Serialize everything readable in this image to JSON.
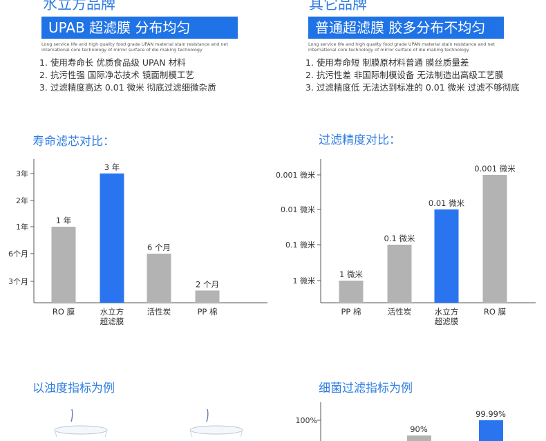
{
  "left": {
    "brand": "水立方品牌",
    "banner": "UPAB 超滤膜  分布均匀",
    "note": "Long service life and high quality food grade UPAN material stain resistance and net international core technology of mirror surface of die making technology",
    "points": [
      "1. 使用寿命长 优质食品级 UPAN 材料",
      "2. 抗污性强  国际净芯技术 镜面制模工艺",
      "3. 过滤精度高达 0.01 微米 彻底过滤细微杂质"
    ]
  },
  "right": {
    "brand": "其它品牌",
    "banner": "普通超滤膜 胶多分布不均匀",
    "note": "Long service life and high quality food grade UPAN material stain resistance and net international core technology of mirror surface of die making technology",
    "points": [
      "1. 使用寿命短 制膜原材料普通 膜丝质量差",
      "2. 抗污性差 非国际制模设备 无法制造出高级工艺膜",
      "3. 过滤精度低 无法达到标准的 0.01 微米 过滤不够彻底"
    ]
  },
  "sections": {
    "lifespan_title": "寿命滤芯对比：",
    "precision_title": "过滤精度对比：",
    "turbidity_title": "以浊度指标为例",
    "bacteria_title": "细菌过滤指标为例"
  },
  "colors": {
    "accent": "#2f7de1",
    "highlight_bar": "#2a74f0",
    "gray_bar": "#b3b3b3"
  },
  "chart_data": [
    {
      "type": "bar",
      "title": "寿命滤芯对比：",
      "y_ticks": [
        "3个月",
        "6个月",
        "1年",
        "2年",
        "3年"
      ],
      "categories": [
        "RO 膜",
        "水立方超滤膜",
        "活性炭",
        "PP 棉"
      ],
      "category_lines": [
        [
          "RO 膜"
        ],
        [
          "水立方",
          "超滤膜"
        ],
        [
          "活性炭"
        ],
        [
          "PP 棉"
        ]
      ],
      "values_months": [
        12,
        36,
        6,
        2
      ],
      "value_labels": [
        "1 年",
        "3 年",
        "6 个月",
        "2 个月"
      ],
      "highlight_index": 1,
      "grid": false
    },
    {
      "type": "bar",
      "title": "过滤精度对比：",
      "y_ticks": [
        "1 微米",
        "0.1 微米",
        "0.01 微米",
        "0.001 微米"
      ],
      "categories": [
        "PP 棉",
        "活性炭",
        "水立方超滤膜",
        "RO 膜"
      ],
      "category_lines": [
        [
          "PP 棉"
        ],
        [
          "活性炭"
        ],
        [
          "水立方",
          "超滤膜"
        ],
        [
          "RO 膜"
        ]
      ],
      "values_micron": [
        1,
        0.1,
        0.01,
        0.001
      ],
      "value_labels": [
        "1 微米",
        "0.1 微米",
        "0.01 微米",
        "0.001 微米"
      ],
      "highlight_index": 2,
      "grid": false
    },
    {
      "type": "bar",
      "title": "细菌过滤指标为例",
      "y_ticks": [
        "100%"
      ],
      "values_percent": [
        90,
        99.99
      ],
      "value_labels": [
        "90%",
        "99.99%"
      ],
      "highlight_index": 1,
      "grid": false
    }
  ]
}
